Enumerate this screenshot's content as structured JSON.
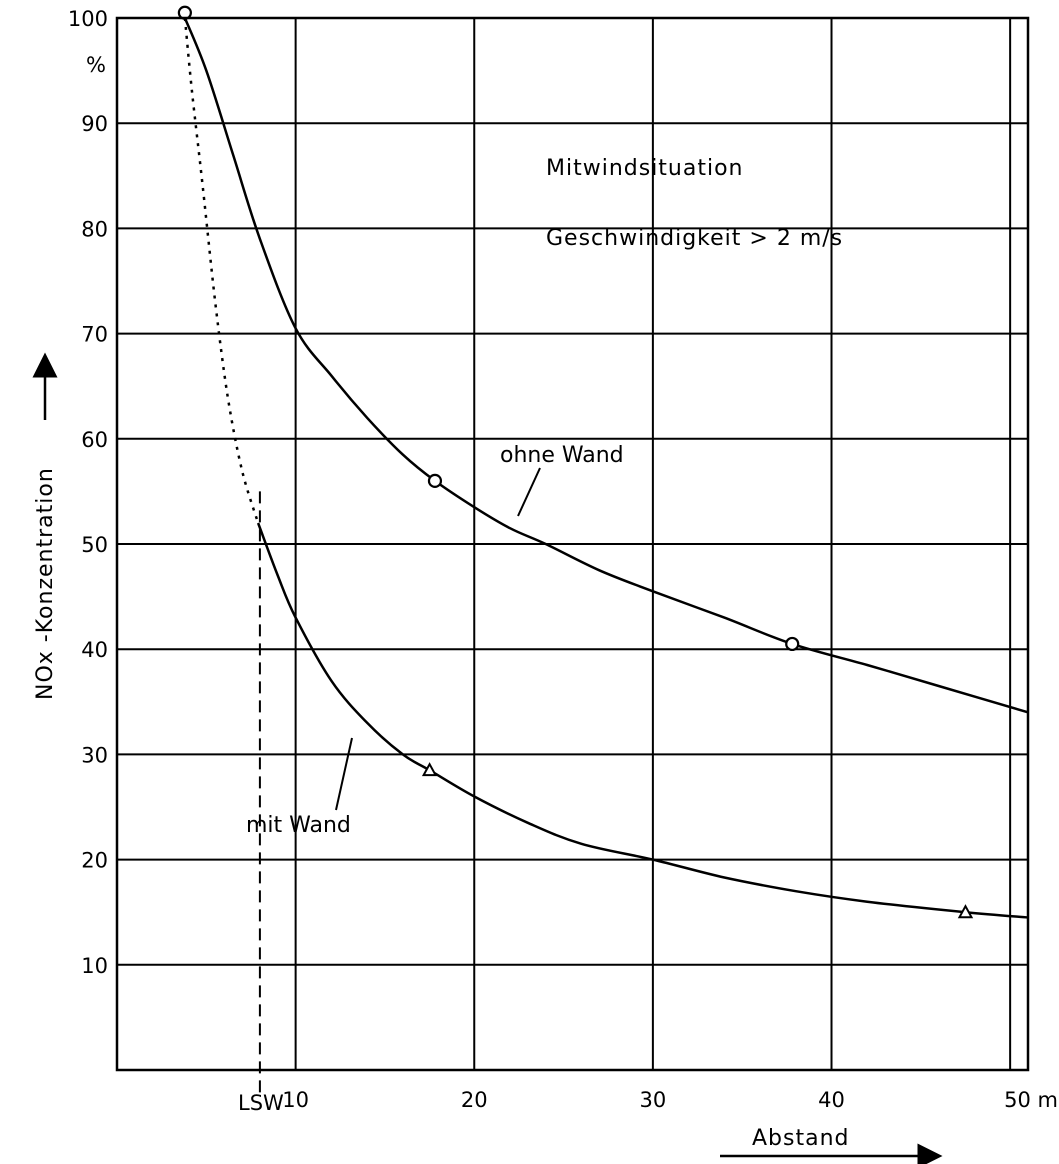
{
  "chart_data": {
    "type": "line",
    "annotations": {
      "title_line1": "Mitwindsituation",
      "title_line2": "Geschwindigkeit > 2 m/s",
      "wall_marker": "LSW"
    },
    "xlabel": "Abstand",
    "ylabel": "NOx -Konzentration",
    "y_unit": "%",
    "x_unit": "m",
    "xlim": [
      0,
      51
    ],
    "ylim": [
      0,
      100
    ],
    "x_ticks": [
      10,
      20,
      30,
      40,
      50
    ],
    "x_tick_labels": [
      "10",
      "20",
      "30",
      "40",
      "50 m"
    ],
    "y_ticks": [
      10,
      20,
      30,
      40,
      50,
      60,
      70,
      80,
      90,
      100
    ],
    "y_tick_labels": [
      "10",
      "20",
      "30",
      "40",
      "50",
      "60",
      "70",
      "80",
      "90",
      "100"
    ],
    "wall_x": 8,
    "series": [
      {
        "name": "ohne Wand",
        "marker": "circle",
        "points": [
          [
            3.8,
            100
          ],
          [
            5,
            95
          ],
          [
            6.5,
            87
          ],
          [
            8,
            79
          ],
          [
            10,
            70.5
          ],
          [
            12,
            66
          ],
          [
            14,
            62
          ],
          [
            16,
            58.5
          ],
          [
            17.8,
            56
          ],
          [
            20,
            53.5
          ],
          [
            22,
            51.5
          ],
          [
            24,
            50
          ],
          [
            27,
            47.5
          ],
          [
            30,
            45.5
          ],
          [
            34,
            43
          ],
          [
            37.8,
            40.5
          ],
          [
            42,
            38.5
          ],
          [
            46,
            36.5
          ],
          [
            51,
            34
          ]
        ],
        "markers": [
          [
            3.8,
            100.5
          ],
          [
            17.8,
            56
          ],
          [
            37.8,
            40.5
          ]
        ],
        "color": "#000000"
      },
      {
        "name": "mit Wand",
        "marker": "triangle",
        "points": [
          [
            7.9,
            52
          ],
          [
            9,
            47
          ],
          [
            10,
            43
          ],
          [
            12,
            37
          ],
          [
            14,
            33
          ],
          [
            16,
            30
          ],
          [
            17.5,
            28.5
          ],
          [
            20,
            26
          ],
          [
            23,
            23.5
          ],
          [
            26,
            21.5
          ],
          [
            30,
            20
          ],
          [
            34,
            18.3
          ],
          [
            38,
            17
          ],
          [
            42,
            16
          ],
          [
            47.5,
            15
          ],
          [
            51,
            14.5
          ]
        ],
        "markers": [
          [
            17.5,
            28.5
          ],
          [
            47.5,
            15
          ]
        ],
        "color": "#000000"
      },
      {
        "name": "",
        "style": "dotted",
        "points": [
          [
            3.8,
            100
          ],
          [
            4.2,
            93
          ],
          [
            4.8,
            84
          ],
          [
            5.5,
            73
          ],
          [
            6.2,
            64
          ],
          [
            7,
            57
          ],
          [
            7.9,
            52
          ]
        ],
        "color": "#000000"
      }
    ]
  }
}
